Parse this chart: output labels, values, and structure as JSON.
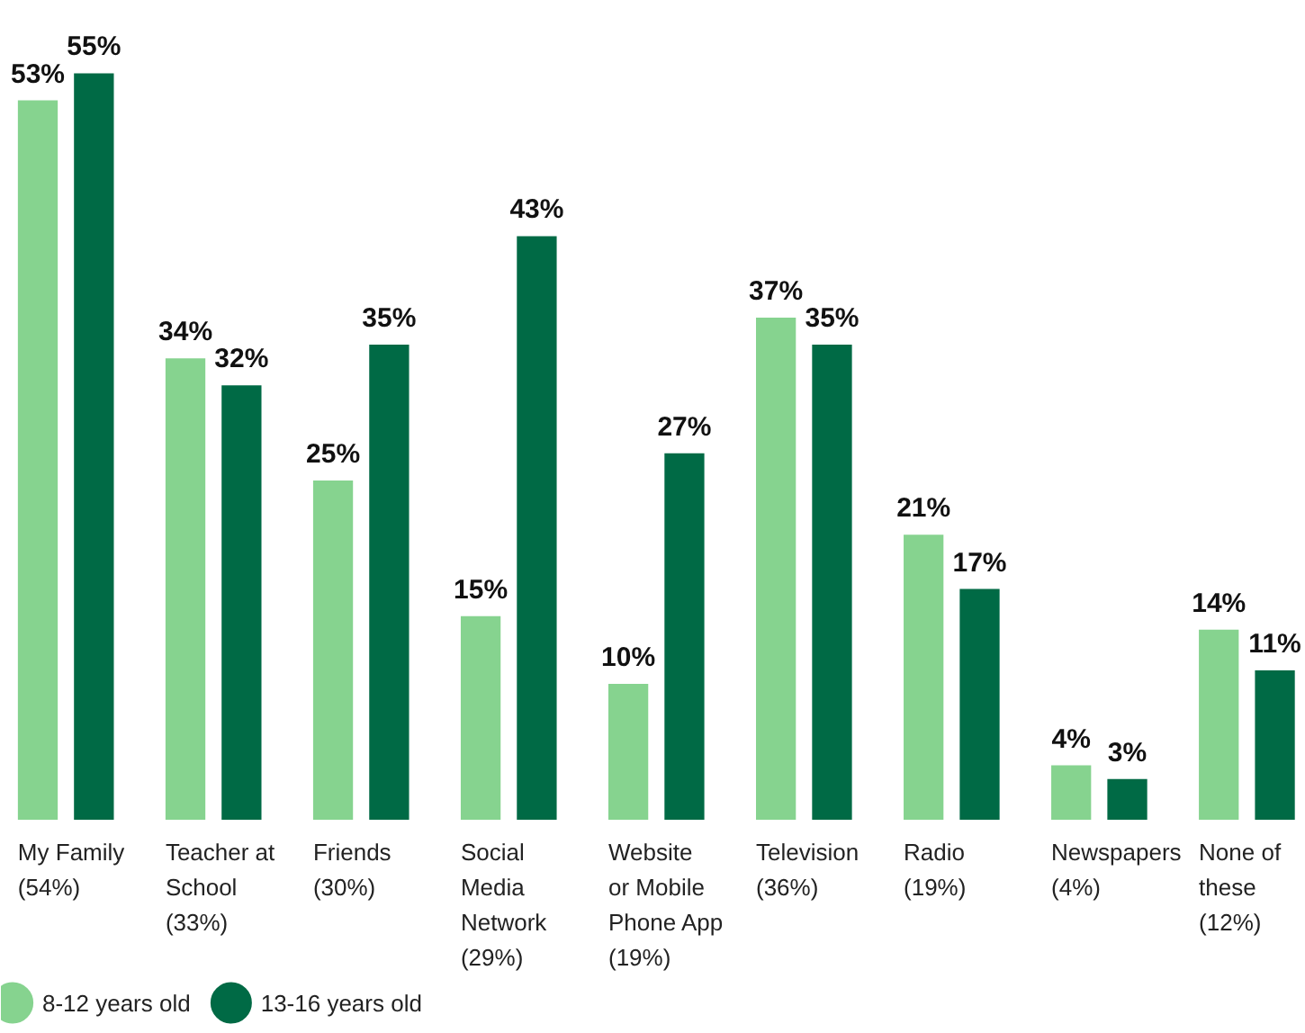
{
  "chart_data": {
    "type": "bar",
    "categories": [
      "My Family\n(54%)",
      "Teacher at\nSchool\n(33%)",
      "Friends\n(30%)",
      "Social\nMedia\nNetwork\n(29%)",
      "Website\nor Mobile\nPhone App\n(19%)",
      "Television\n(36%)",
      "Radio\n(19%)",
      "Newspapers\n(4%)",
      "None of\nthese\n(12%)"
    ],
    "series": [
      {
        "name": "8-12 years old",
        "color": "#86d38f",
        "values": [
          53,
          34,
          25,
          15,
          10,
          37,
          21,
          4,
          14
        ],
        "value_labels": [
          "53%",
          "34%",
          "25%",
          "15%",
          "10%",
          "37%",
          "21%",
          "4%",
          "14%"
        ]
      },
      {
        "name": "13-16 years old",
        "color": "#006a45",
        "values": [
          55,
          32,
          35,
          43,
          27,
          35,
          17,
          3,
          11
        ],
        "value_labels": [
          "55%",
          "32%",
          "35%",
          "43%",
          "27%",
          "35%",
          "17%",
          "3%",
          "11%"
        ]
      }
    ],
    "legend": "bottom left",
    "grid": false
  }
}
